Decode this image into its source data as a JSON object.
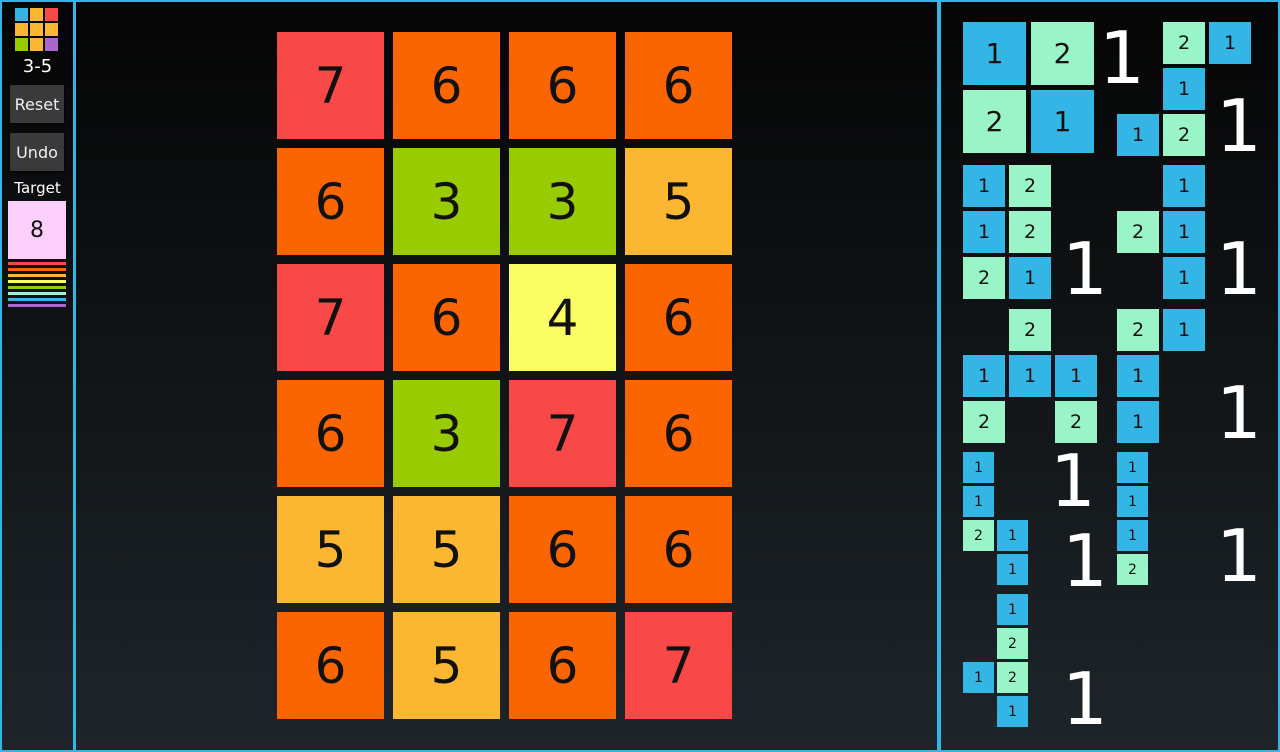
{
  "level": "3-5",
  "buttons": {
    "reset": "Reset",
    "undo": "Undo"
  },
  "target": {
    "label": "Target",
    "value": "8"
  },
  "colors": {
    "accent": "#33b5e5",
    "values": {
      "1": "#33b5e5",
      "2": "#99f5c8",
      "3": "#99cc00",
      "4": "#fbfd63",
      "5": "#fbb732",
      "6": "#fb6500",
      "7": "#f94848",
      "8": "#fcd0fc"
    },
    "logo": [
      "#33b5e5",
      "#fbb732",
      "#f94848",
      "#fbb732",
      "#fbb732",
      "#fbb732",
      "#99cc00",
      "#fbb732",
      "#aa66cc"
    ],
    "stripes": [
      "#f94848",
      "#fb6500",
      "#fbb732",
      "#fbfd63",
      "#99cc00",
      "#99f5c8",
      "#33b5e5",
      "#aa66cc"
    ]
  },
  "board": [
    [
      7,
      6,
      6,
      6
    ],
    [
      6,
      3,
      3,
      5
    ],
    [
      7,
      6,
      4,
      6
    ],
    [
      6,
      3,
      7,
      6
    ],
    [
      5,
      5,
      6,
      6
    ],
    [
      6,
      5,
      6,
      7
    ]
  ],
  "pieces": [
    {
      "count": "1",
      "cells": [
        [
          0,
          0,
          1
        ],
        [
          0,
          1,
          2
        ],
        [
          1,
          0,
          2
        ],
        [
          1,
          1,
          1
        ]
      ]
    },
    {
      "count": "1",
      "cells": [
        [
          0,
          1,
          2
        ],
        [
          0,
          2,
          1
        ],
        [
          1,
          1,
          1
        ],
        [
          2,
          0,
          1
        ],
        [
          2,
          1,
          2
        ]
      ]
    },
    {
      "count": "1",
      "cells": [
        [
          0,
          0,
          1
        ],
        [
          0,
          1,
          2
        ],
        [
          1,
          0,
          1
        ],
        [
          1,
          1,
          2
        ],
        [
          2,
          0,
          2
        ],
        [
          2,
          1,
          1
        ]
      ]
    },
    {
      "count": "1",
      "cells": [
        [
          0,
          1,
          1
        ],
        [
          1,
          0,
          2
        ],
        [
          1,
          1,
          1
        ],
        [
          2,
          1,
          1
        ]
      ]
    },
    {
      "count": "1",
      "cells": [
        [
          0,
          1,
          2
        ],
        [
          1,
          0,
          1
        ],
        [
          1,
          1,
          1
        ],
        [
          1,
          2,
          1
        ],
        [
          2,
          0,
          2
        ],
        [
          2,
          2,
          2
        ]
      ]
    },
    {
      "count": "1",
      "cells": [
        [
          0,
          0,
          2
        ],
        [
          0,
          1,
          1
        ],
        [
          1,
          0,
          1
        ],
        [
          2,
          0,
          1
        ]
      ]
    },
    {
      "count": "1",
      "cells": [
        [
          0,
          0,
          1
        ],
        [
          1,
          0,
          1
        ],
        [
          2,
          0,
          2
        ],
        [
          2,
          1,
          1
        ],
        [
          3,
          1,
          1
        ]
      ]
    },
    {
      "count": "1",
      "cells": [
        [
          0,
          0,
          1
        ],
        [
          1,
          0,
          1
        ],
        [
          2,
          0,
          1
        ],
        [
          3,
          0,
          2
        ]
      ]
    },
    {
      "count": "1",
      "cells": [
        [
          0,
          1,
          1
        ],
        [
          1,
          1,
          2
        ],
        [
          2,
          0,
          1
        ],
        [
          2,
          1,
          2
        ],
        [
          3,
          1,
          1
        ]
      ]
    }
  ]
}
